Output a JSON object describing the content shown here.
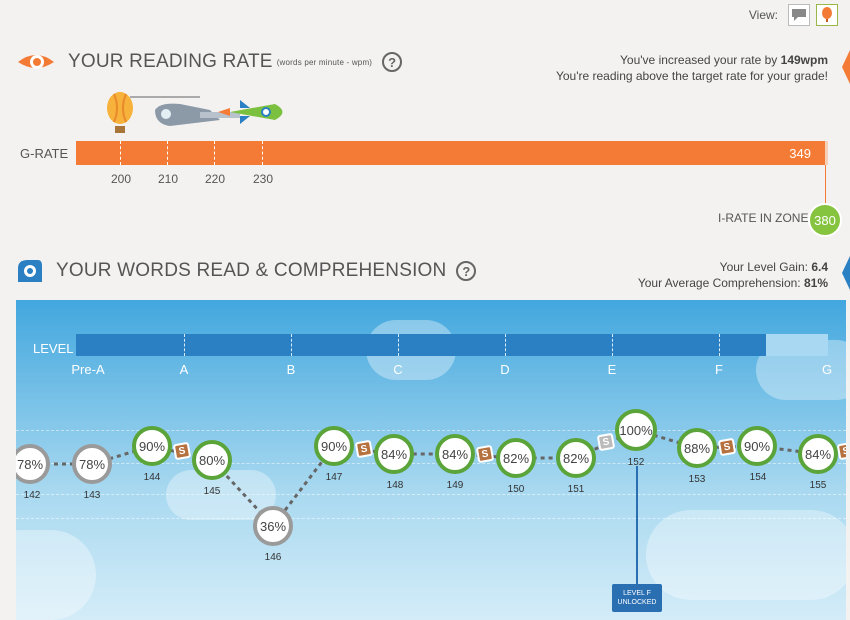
{
  "view": {
    "label": "View:",
    "options": [
      {
        "name": "chat",
        "icon": "speech-bubble-icon"
      },
      {
        "name": "balloon",
        "icon": "balloon-icon"
      }
    ]
  },
  "reading_rate": {
    "title": "YOUR READING RATE",
    "subtitle": "(words per minute - wpm)",
    "help": "?",
    "message_prefix": "You've increased your rate by",
    "increase": "149wpm",
    "message_line2": "You're reading above the target rate for your grade!",
    "grate_label": "G-RATE",
    "grate_value": "349",
    "ticks": [
      "200",
      "210",
      "220",
      "230"
    ],
    "irate_label": "I-RATE IN ZONE",
    "irate_value": "380",
    "accent": "#f47b35"
  },
  "words_read": {
    "title": "YOUR WORDS READ & COMPREHENSION",
    "help": "?",
    "level_gain_label": "Your Level Gain:",
    "level_gain": "6.4",
    "avg_comp_label": "Your Average Comprehension:",
    "avg_comp": "81%",
    "level_label": "LEVEL",
    "levels": [
      "Pre-A",
      "A",
      "B",
      "C",
      "D",
      "E",
      "F",
      "G"
    ],
    "nodes": [
      {
        "pct": "78%",
        "id": "142",
        "grey": true
      },
      {
        "pct": "78%",
        "id": "143",
        "grey": true
      },
      {
        "pct": "90%",
        "id": "144"
      },
      {
        "pct": "80%",
        "id": "145"
      },
      {
        "pct": "36%",
        "id": "146",
        "grey": true
      },
      {
        "pct": "90%",
        "id": "147"
      },
      {
        "pct": "84%",
        "id": "148"
      },
      {
        "pct": "84%",
        "id": "149"
      },
      {
        "pct": "82%",
        "id": "150"
      },
      {
        "pct": "82%",
        "id": "151"
      },
      {
        "pct": "100%",
        "id": "152"
      },
      {
        "pct": "88%",
        "id": "153"
      },
      {
        "pct": "90%",
        "id": "154"
      },
      {
        "pct": "84%",
        "id": "155"
      }
    ],
    "badge_symbol": "S",
    "unlock_line1": "LEVEL F",
    "unlock_line2": "UNLOCKED",
    "green": "#5aa43a",
    "blue": "#2b7fc3"
  }
}
